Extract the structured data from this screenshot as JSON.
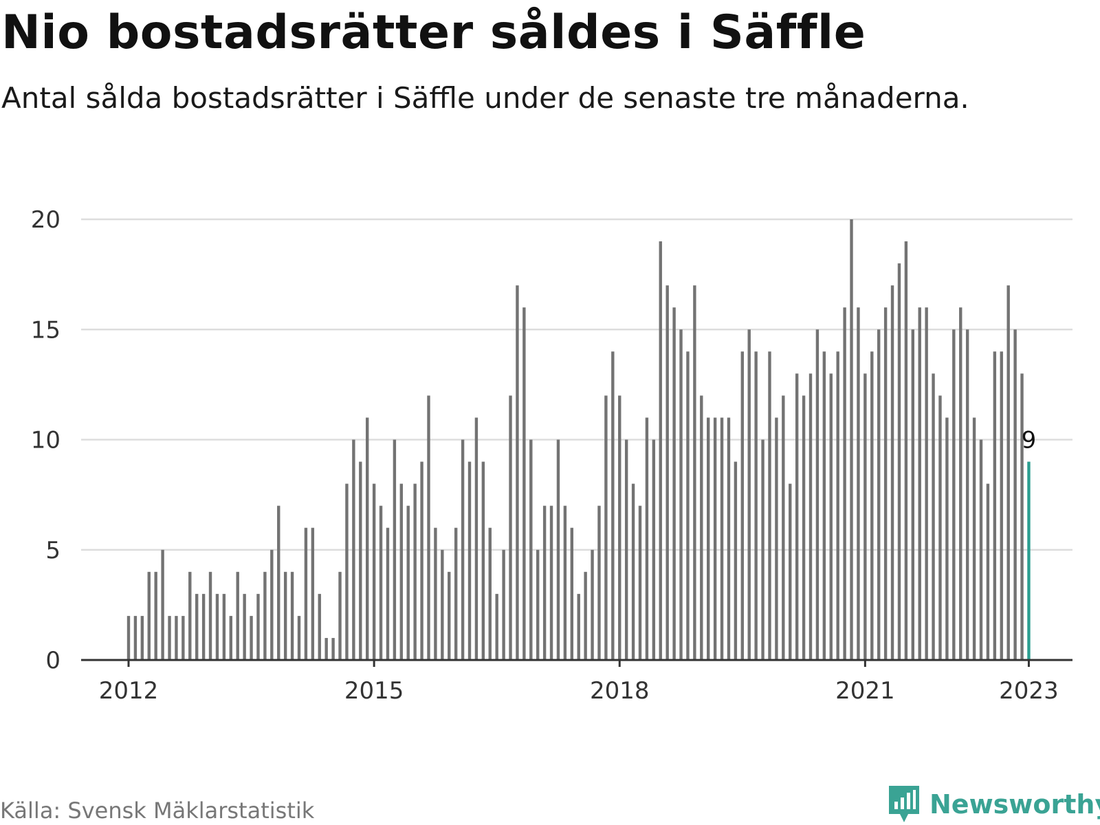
{
  "title": "Nio bostadsrätter såldes i Säffle",
  "subtitle": "Antal sålda bostadsrätter i Säffle under de senaste tre månaderna.",
  "source": "Källa: Svensk Mäklarstatistik",
  "brand": {
    "name": "Newsworthy",
    "icon": "newsworthy-logo-icon"
  },
  "colors": {
    "bar": "#737373",
    "highlight": "#2b9e90",
    "grid": "#dddddd",
    "axis": "#333333",
    "brand": "#3aa394"
  },
  "chart_data": {
    "type": "bar",
    "x_start": "2012-01",
    "x_frequency": "monthly",
    "x_ticks": [
      "2012",
      "2015",
      "2018",
      "2021",
      "2023"
    ],
    "y_ticks": [
      "0",
      "5",
      "10",
      "15",
      "20"
    ],
    "ylim": [
      0,
      20
    ],
    "grid": true,
    "values": [
      2,
      2,
      2,
      4,
      4,
      5,
      2,
      2,
      2,
      4,
      3,
      3,
      4,
      3,
      3,
      2,
      4,
      3,
      2,
      3,
      4,
      5,
      7,
      4,
      4,
      2,
      6,
      6,
      3,
      1,
      1,
      4,
      8,
      10,
      9,
      11,
      8,
      7,
      6,
      10,
      8,
      7,
      8,
      9,
      12,
      6,
      5,
      4,
      6,
      10,
      9,
      11,
      9,
      6,
      3,
      5,
      12,
      17,
      16,
      10,
      5,
      7,
      7,
      10,
      7,
      6,
      3,
      4,
      5,
      7,
      12,
      14,
      12,
      10,
      8,
      7,
      11,
      10,
      19,
      17,
      16,
      15,
      14,
      17,
      12,
      11,
      11,
      11,
      11,
      9,
      14,
      15,
      14,
      10,
      14,
      11,
      12,
      8,
      13,
      12,
      13,
      15,
      14,
      13,
      14,
      16,
      20,
      16,
      13,
      14,
      15,
      16,
      17,
      18,
      19,
      15,
      16,
      16,
      13,
      12,
      11,
      15,
      16,
      15,
      11,
      10,
      8,
      14,
      14,
      17,
      15,
      13,
      9
    ],
    "highlight": {
      "index": 132,
      "label": "9"
    }
  }
}
